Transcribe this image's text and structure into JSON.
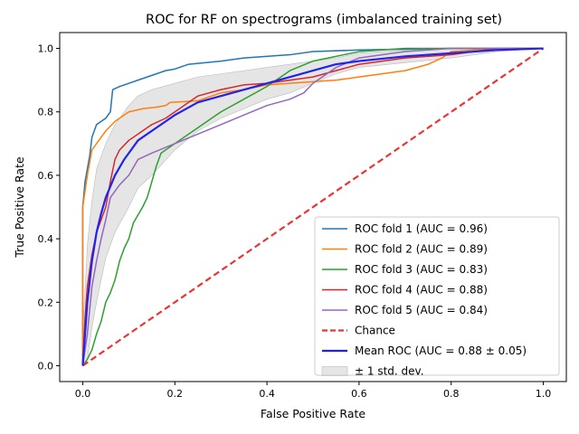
{
  "chart_data": {
    "type": "line",
    "title": "ROC for RF on spectrograms (imbalanced training set)",
    "xlabel": "False Positive Rate",
    "ylabel": "True Positive Rate",
    "xlim": [
      -0.05,
      1.05
    ],
    "ylim": [
      -0.05,
      1.05
    ],
    "xticks": [
      "0.0",
      "0.2",
      "0.4",
      "0.6",
      "0.8",
      "1.0"
    ],
    "yticks": [
      "0.0",
      "0.2",
      "0.4",
      "0.6",
      "0.8",
      "1.0"
    ],
    "grid": false,
    "legend_position": "lower-right",
    "colors": {
      "fold1": "#1f77b4",
      "fold2": "#ff7f0e",
      "fold3": "#2ca02c",
      "fold4": "#d62728",
      "fold5": "#9467bd",
      "chance": "#ee3333",
      "mean": "#2222ee",
      "band": "#d3d3d3"
    },
    "series": [
      {
        "name": "ROC fold 1 (AUC = 0.96)",
        "color": "#1f77b4",
        "points": [
          [
            0,
            0
          ],
          [
            0,
            0.5
          ],
          [
            0.005,
            0.58
          ],
          [
            0.01,
            0.62
          ],
          [
            0.015,
            0.66
          ],
          [
            0.02,
            0.72
          ],
          [
            0.03,
            0.76
          ],
          [
            0.05,
            0.78
          ],
          [
            0.06,
            0.8
          ],
          [
            0.065,
            0.87
          ],
          [
            0.08,
            0.88
          ],
          [
            0.1,
            0.89
          ],
          [
            0.12,
            0.9
          ],
          [
            0.15,
            0.915
          ],
          [
            0.18,
            0.93
          ],
          [
            0.2,
            0.935
          ],
          [
            0.23,
            0.95
          ],
          [
            0.3,
            0.96
          ],
          [
            0.35,
            0.97
          ],
          [
            0.45,
            0.98
          ],
          [
            0.5,
            0.99
          ],
          [
            0.6,
            0.995
          ],
          [
            0.8,
            1.0
          ],
          [
            1.0,
            1.0
          ]
        ]
      },
      {
        "name": "ROC fold 2 (AUC = 0.89)",
        "color": "#ff7f0e",
        "points": [
          [
            0,
            0
          ],
          [
            0,
            0.5
          ],
          [
            0.01,
            0.6
          ],
          [
            0.02,
            0.68
          ],
          [
            0.03,
            0.7
          ],
          [
            0.05,
            0.74
          ],
          [
            0.07,
            0.77
          ],
          [
            0.1,
            0.8
          ],
          [
            0.13,
            0.81
          ],
          [
            0.16,
            0.815
          ],
          [
            0.18,
            0.82
          ],
          [
            0.19,
            0.83
          ],
          [
            0.25,
            0.835
          ],
          [
            0.3,
            0.86
          ],
          [
            0.35,
            0.87
          ],
          [
            0.4,
            0.885
          ],
          [
            0.45,
            0.89
          ],
          [
            0.55,
            0.9
          ],
          [
            0.6,
            0.91
          ],
          [
            0.65,
            0.92
          ],
          [
            0.7,
            0.93
          ],
          [
            0.75,
            0.95
          ],
          [
            0.78,
            0.97
          ],
          [
            0.8,
            0.99
          ],
          [
            0.9,
            1.0
          ],
          [
            1.0,
            1.0
          ]
        ]
      },
      {
        "name": "ROC fold 3 (AUC = 0.83)",
        "color": "#2ca02c",
        "points": [
          [
            0,
            0
          ],
          [
            0.01,
            0.02
          ],
          [
            0.02,
            0.05
          ],
          [
            0.03,
            0.1
          ],
          [
            0.04,
            0.14
          ],
          [
            0.05,
            0.2
          ],
          [
            0.06,
            0.23
          ],
          [
            0.07,
            0.27
          ],
          [
            0.08,
            0.33
          ],
          [
            0.09,
            0.37
          ],
          [
            0.1,
            0.4
          ],
          [
            0.11,
            0.45
          ],
          [
            0.13,
            0.5
          ],
          [
            0.14,
            0.53
          ],
          [
            0.15,
            0.58
          ],
          [
            0.16,
            0.63
          ],
          [
            0.17,
            0.67
          ],
          [
            0.2,
            0.7
          ],
          [
            0.25,
            0.75
          ],
          [
            0.3,
            0.8
          ],
          [
            0.35,
            0.84
          ],
          [
            0.4,
            0.88
          ],
          [
            0.45,
            0.93
          ],
          [
            0.5,
            0.96
          ],
          [
            0.6,
            0.99
          ],
          [
            0.7,
            1.0
          ],
          [
            1.0,
            1.0
          ]
        ]
      },
      {
        "name": "ROC fold 4 (AUC = 0.88)",
        "color": "#d62728",
        "points": [
          [
            0,
            0
          ],
          [
            0.005,
            0.15
          ],
          [
            0.01,
            0.25
          ],
          [
            0.02,
            0.35
          ],
          [
            0.03,
            0.42
          ],
          [
            0.05,
            0.5
          ],
          [
            0.06,
            0.58
          ],
          [
            0.07,
            0.65
          ],
          [
            0.08,
            0.68
          ],
          [
            0.1,
            0.71
          ],
          [
            0.13,
            0.74
          ],
          [
            0.15,
            0.76
          ],
          [
            0.18,
            0.78
          ],
          [
            0.2,
            0.8
          ],
          [
            0.25,
            0.85
          ],
          [
            0.3,
            0.87
          ],
          [
            0.35,
            0.885
          ],
          [
            0.4,
            0.89
          ],
          [
            0.5,
            0.91
          ],
          [
            0.6,
            0.95
          ],
          [
            0.7,
            0.97
          ],
          [
            0.8,
            0.98
          ],
          [
            0.9,
            1.0
          ],
          [
            1.0,
            1.0
          ]
        ]
      },
      {
        "name": "ROC fold 5 (AUC = 0.84)",
        "color": "#9467bd",
        "points": [
          [
            0,
            0
          ],
          [
            0.01,
            0.1
          ],
          [
            0.02,
            0.25
          ],
          [
            0.03,
            0.33
          ],
          [
            0.04,
            0.4
          ],
          [
            0.05,
            0.46
          ],
          [
            0.06,
            0.53
          ],
          [
            0.08,
            0.57
          ],
          [
            0.1,
            0.6
          ],
          [
            0.12,
            0.65
          ],
          [
            0.15,
            0.67
          ],
          [
            0.2,
            0.7
          ],
          [
            0.25,
            0.73
          ],
          [
            0.3,
            0.76
          ],
          [
            0.35,
            0.79
          ],
          [
            0.4,
            0.82
          ],
          [
            0.45,
            0.84
          ],
          [
            0.48,
            0.86
          ],
          [
            0.5,
            0.89
          ],
          [
            0.55,
            0.94
          ],
          [
            0.6,
            0.97
          ],
          [
            0.7,
            0.99
          ],
          [
            0.8,
            1.0
          ],
          [
            1.0,
            1.0
          ]
        ]
      },
      {
        "name": "Chance",
        "color": "#ee3333",
        "dashed": true,
        "points": [
          [
            0,
            0
          ],
          [
            1,
            1
          ]
        ]
      },
      {
        "name": "Mean ROC (AUC = 0.88 ± 0.05)",
        "color": "#2222ee",
        "width": 2.2,
        "points": [
          [
            0,
            0
          ],
          [
            0.01,
            0.2
          ],
          [
            0.02,
            0.33
          ],
          [
            0.03,
            0.42
          ],
          [
            0.04,
            0.48
          ],
          [
            0.05,
            0.53
          ],
          [
            0.07,
            0.6
          ],
          [
            0.09,
            0.65
          ],
          [
            0.1,
            0.67
          ],
          [
            0.12,
            0.71
          ],
          [
            0.15,
            0.74
          ],
          [
            0.18,
            0.77
          ],
          [
            0.2,
            0.79
          ],
          [
            0.25,
            0.83
          ],
          [
            0.3,
            0.85
          ],
          [
            0.35,
            0.87
          ],
          [
            0.4,
            0.89
          ],
          [
            0.45,
            0.91
          ],
          [
            0.5,
            0.93
          ],
          [
            0.55,
            0.95
          ],
          [
            0.6,
            0.96
          ],
          [
            0.7,
            0.975
          ],
          [
            0.8,
            0.985
          ],
          [
            0.9,
            0.995
          ],
          [
            1.0,
            1.0
          ]
        ]
      }
    ],
    "band": {
      "name": "± 1 std. dev.",
      "color": "#d3d3d3",
      "x": [
        0,
        0.01,
        0.02,
        0.03,
        0.05,
        0.07,
        0.1,
        0.12,
        0.15,
        0.2,
        0.25,
        0.3,
        0.35,
        0.4,
        0.45,
        0.5,
        0.55,
        0.6,
        0.7,
        0.8,
        0.9,
        1.0
      ],
      "upper": [
        0.1,
        0.38,
        0.52,
        0.62,
        0.7,
        0.76,
        0.82,
        0.85,
        0.87,
        0.89,
        0.91,
        0.92,
        0.93,
        0.94,
        0.95,
        0.96,
        0.97,
        0.985,
        0.995,
        1.0,
        1.0,
        1.0
      ],
      "lower": [
        0,
        0.02,
        0.12,
        0.2,
        0.34,
        0.42,
        0.5,
        0.56,
        0.6,
        0.68,
        0.74,
        0.78,
        0.81,
        0.84,
        0.86,
        0.89,
        0.92,
        0.94,
        0.955,
        0.97,
        0.99,
        1.0
      ]
    }
  }
}
